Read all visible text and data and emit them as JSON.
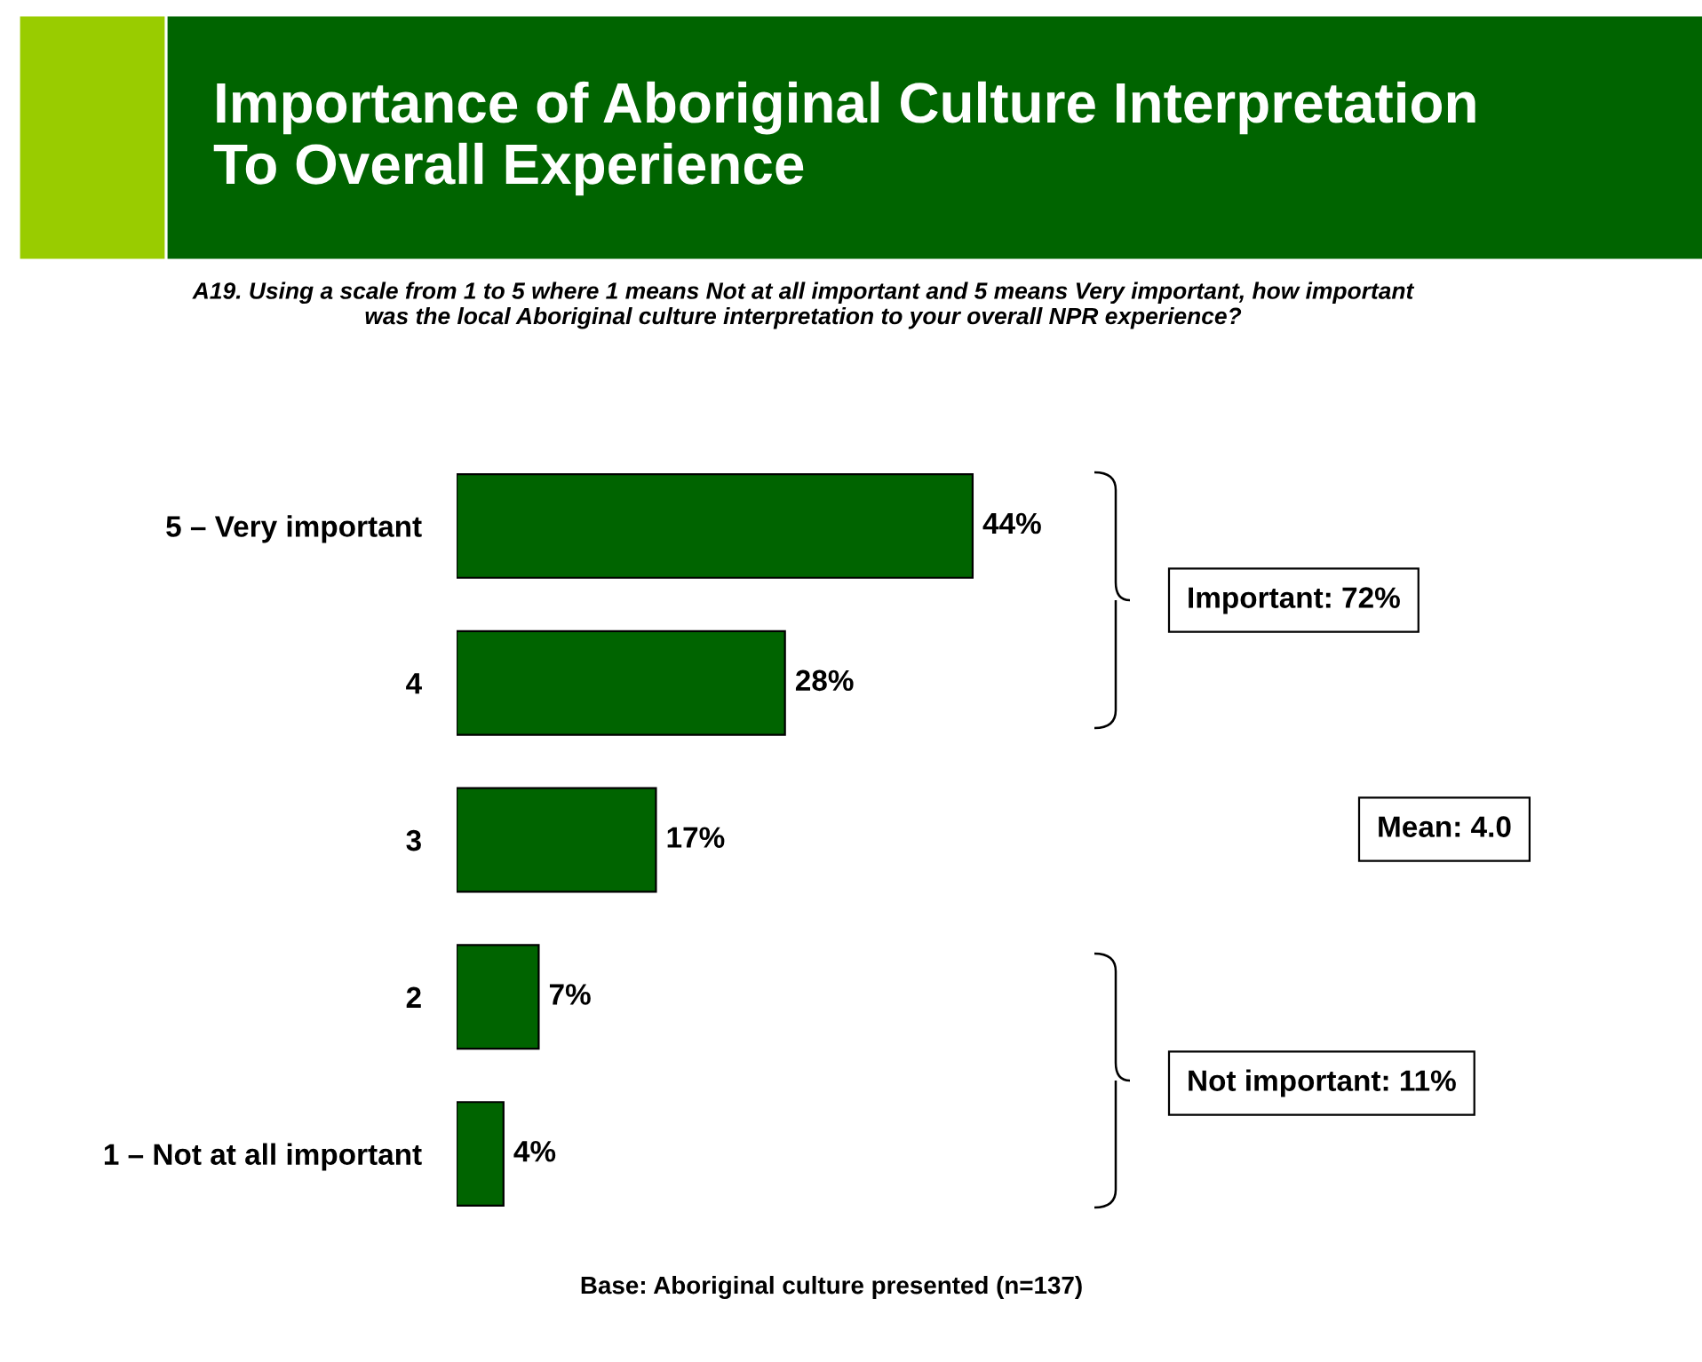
{
  "chart_data": {
    "type": "bar",
    "orientation": "horizontal",
    "title": "Importance of Aboriginal Culture Interpretation\nTo Overall Experience",
    "subtitle": "A19. Using a scale from 1 to 5 where 1 means Not at all important and 5 means Very important, how important\nwas the local Aboriginal culture interpretation to your overall NPR experience?",
    "categories": [
      "5 – Very important",
      "4",
      "3",
      "2",
      "1 – Not at all important"
    ],
    "values": [
      44,
      28,
      17,
      7,
      4
    ],
    "value_labels": [
      "44%",
      "28%",
      "17%",
      "7%",
      "4%"
    ],
    "color": "#006400",
    "annotations": [
      "Important: 72%",
      "Mean: 4.0",
      "Not important: 11%",
      "Base: Aboriginal culture presented (n=137)"
    ],
    "grid": false,
    "legend": false
  }
}
